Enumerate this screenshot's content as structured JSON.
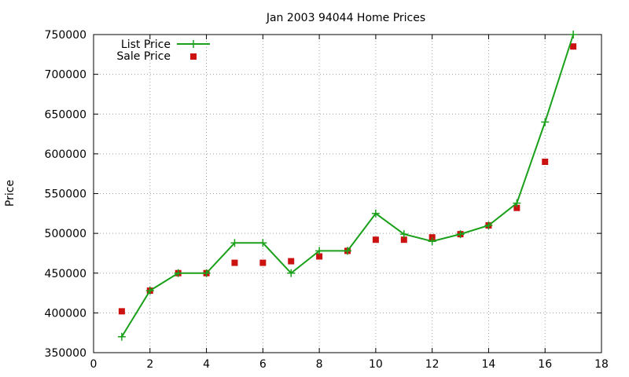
{
  "chart_data": {
    "type": "line",
    "title": "Jan 2003 94044 Home Prices",
    "xlabel": "",
    "ylabel": "Price",
    "xlim": [
      0,
      18
    ],
    "ylim": [
      350000,
      750000
    ],
    "x_ticks": [
      0,
      2,
      4,
      6,
      8,
      10,
      12,
      14,
      16,
      18
    ],
    "y_ticks": [
      350000,
      400000,
      450000,
      500000,
      550000,
      600000,
      650000,
      700000,
      750000
    ],
    "grid": true,
    "legend_position": "top-left",
    "series": [
      {
        "name": "List Price",
        "style": "line+cross",
        "color": "#1aa01a",
        "x": [
          1,
          2,
          3,
          4,
          5,
          6,
          7,
          8,
          9,
          10,
          11,
          12,
          13,
          14,
          15,
          16,
          17
        ],
        "y": [
          370000,
          428000,
          450000,
          450000,
          488000,
          488000,
          450000,
          478000,
          478000,
          525000,
          499000,
          490000,
          499000,
          510000,
          538000,
          640000,
          750000
        ]
      },
      {
        "name": "Sale Price",
        "style": "square",
        "color": "#cc1111",
        "x": [
          1,
          2,
          3,
          4,
          5,
          6,
          7,
          8,
          9,
          10,
          11,
          12,
          13,
          14,
          15,
          16,
          17
        ],
        "y": [
          402000,
          428000,
          450000,
          450000,
          463000,
          463000,
          465000,
          471000,
          478000,
          492000,
          492000,
          495000,
          499000,
          510000,
          532000,
          590000,
          735000
        ]
      }
    ]
  }
}
